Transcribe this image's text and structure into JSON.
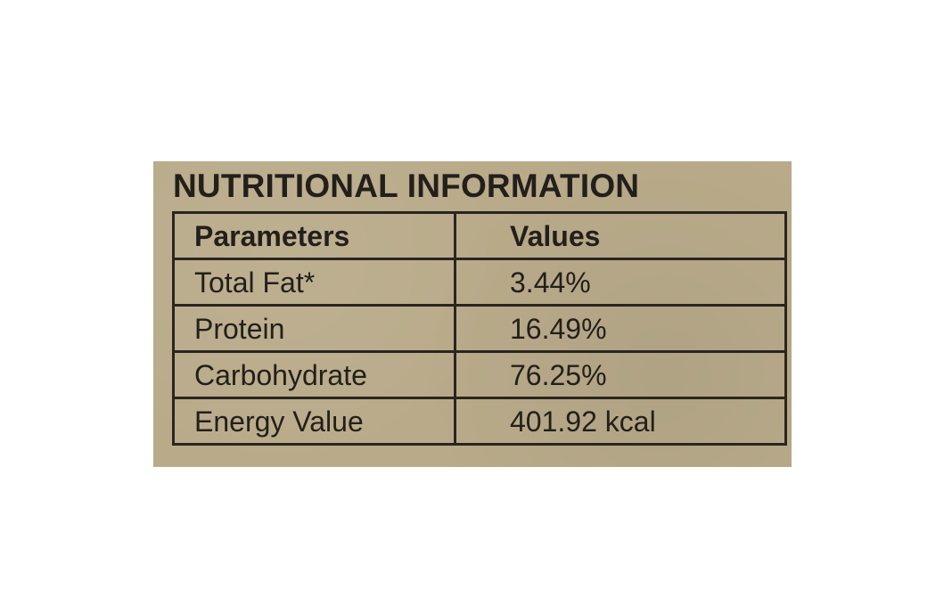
{
  "title": "NUTRITIONAL INFORMATION",
  "table": {
    "headers": [
      "Parameters",
      "Values"
    ],
    "rows": [
      [
        "Total Fat*",
        "3.44%"
      ],
      [
        "Protein",
        "16.49%"
      ],
      [
        "Carbohydrate",
        "76.25%"
      ],
      [
        "Energy Value",
        "401.92 kcal"
      ]
    ]
  },
  "colors": {
    "panel": "#b9ab8a",
    "ink": "#231f1a"
  }
}
